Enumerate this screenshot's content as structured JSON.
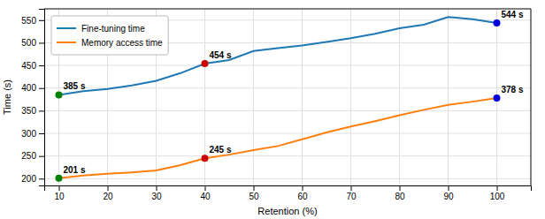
{
  "chart_data": {
    "type": "line",
    "x": [
      10,
      15,
      20,
      25,
      30,
      35,
      40,
      45,
      50,
      55,
      60,
      65,
      70,
      75,
      80,
      85,
      90,
      95,
      100
    ],
    "series": [
      {
        "name": "Fine-tuning time",
        "color": "#1f77b4",
        "values": [
          385,
          393,
          398,
          406,
          416,
          433,
          454,
          462,
          482,
          488,
          494,
          502,
          510,
          520,
          532,
          540,
          557,
          552,
          544
        ]
      },
      {
        "name": "Memory access time",
        "color": "#ff7f0e",
        "values": [
          201,
          207,
          211,
          214,
          218,
          230,
          245,
          253,
          263,
          272,
          287,
          302,
          315,
          327,
          340,
          352,
          363,
          370,
          378
        ]
      }
    ],
    "annotations": [
      {
        "x": 10,
        "y": 385,
        "text": "385 s",
        "color": "#008000"
      },
      {
        "x": 10,
        "y": 201,
        "text": "201 s",
        "color": "#008000"
      },
      {
        "x": 40,
        "y": 454,
        "text": "454 s",
        "color": "#cc0000"
      },
      {
        "x": 40,
        "y": 245,
        "text": "245 s",
        "color": "#cc0000"
      },
      {
        "x": 100,
        "y": 544,
        "text": "544 s",
        "color": "#0000dd"
      },
      {
        "x": 100,
        "y": 378,
        "text": "378 s",
        "color": "#0000dd"
      }
    ],
    "xlabel": "Retention (%)",
    "ylabel": "Time (s)",
    "xlim": [
      7,
      107
    ],
    "ylim": [
      185,
      575
    ],
    "xticks": [
      10,
      20,
      30,
      40,
      50,
      60,
      70,
      80,
      90,
      100
    ],
    "yticks": [
      200,
      250,
      300,
      350,
      400,
      450,
      500,
      550
    ],
    "grid": true,
    "legend": "upper left"
  }
}
